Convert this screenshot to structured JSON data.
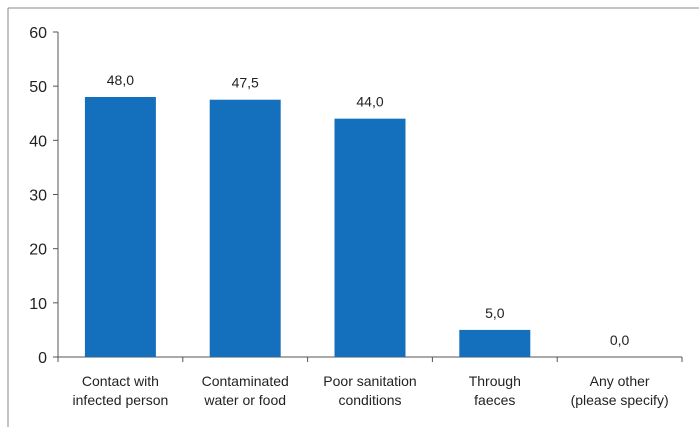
{
  "chart_data": {
    "type": "bar",
    "categories": [
      [
        "Contact with",
        "infected person"
      ],
      [
        "Contaminated",
        "water or food"
      ],
      [
        "Poor sanitation",
        "conditions"
      ],
      [
        "Through",
        "faeces"
      ],
      [
        "Any other",
        "(please specify)"
      ]
    ],
    "values": [
      48.0,
      47.5,
      44.0,
      5.0,
      0.0
    ],
    "value_labels": [
      "48,0",
      "47,5",
      "44,0",
      "5,0",
      "0,0"
    ],
    "title": "",
    "xlabel": "",
    "ylabel": "",
    "ylim": [
      0,
      60
    ],
    "yticks": [
      0,
      10,
      20,
      30,
      40,
      50,
      60
    ],
    "grid": false,
    "legend": "none",
    "bar_color": "#1470bd",
    "axis_color": "#555555",
    "frame_color": "#888888"
  }
}
